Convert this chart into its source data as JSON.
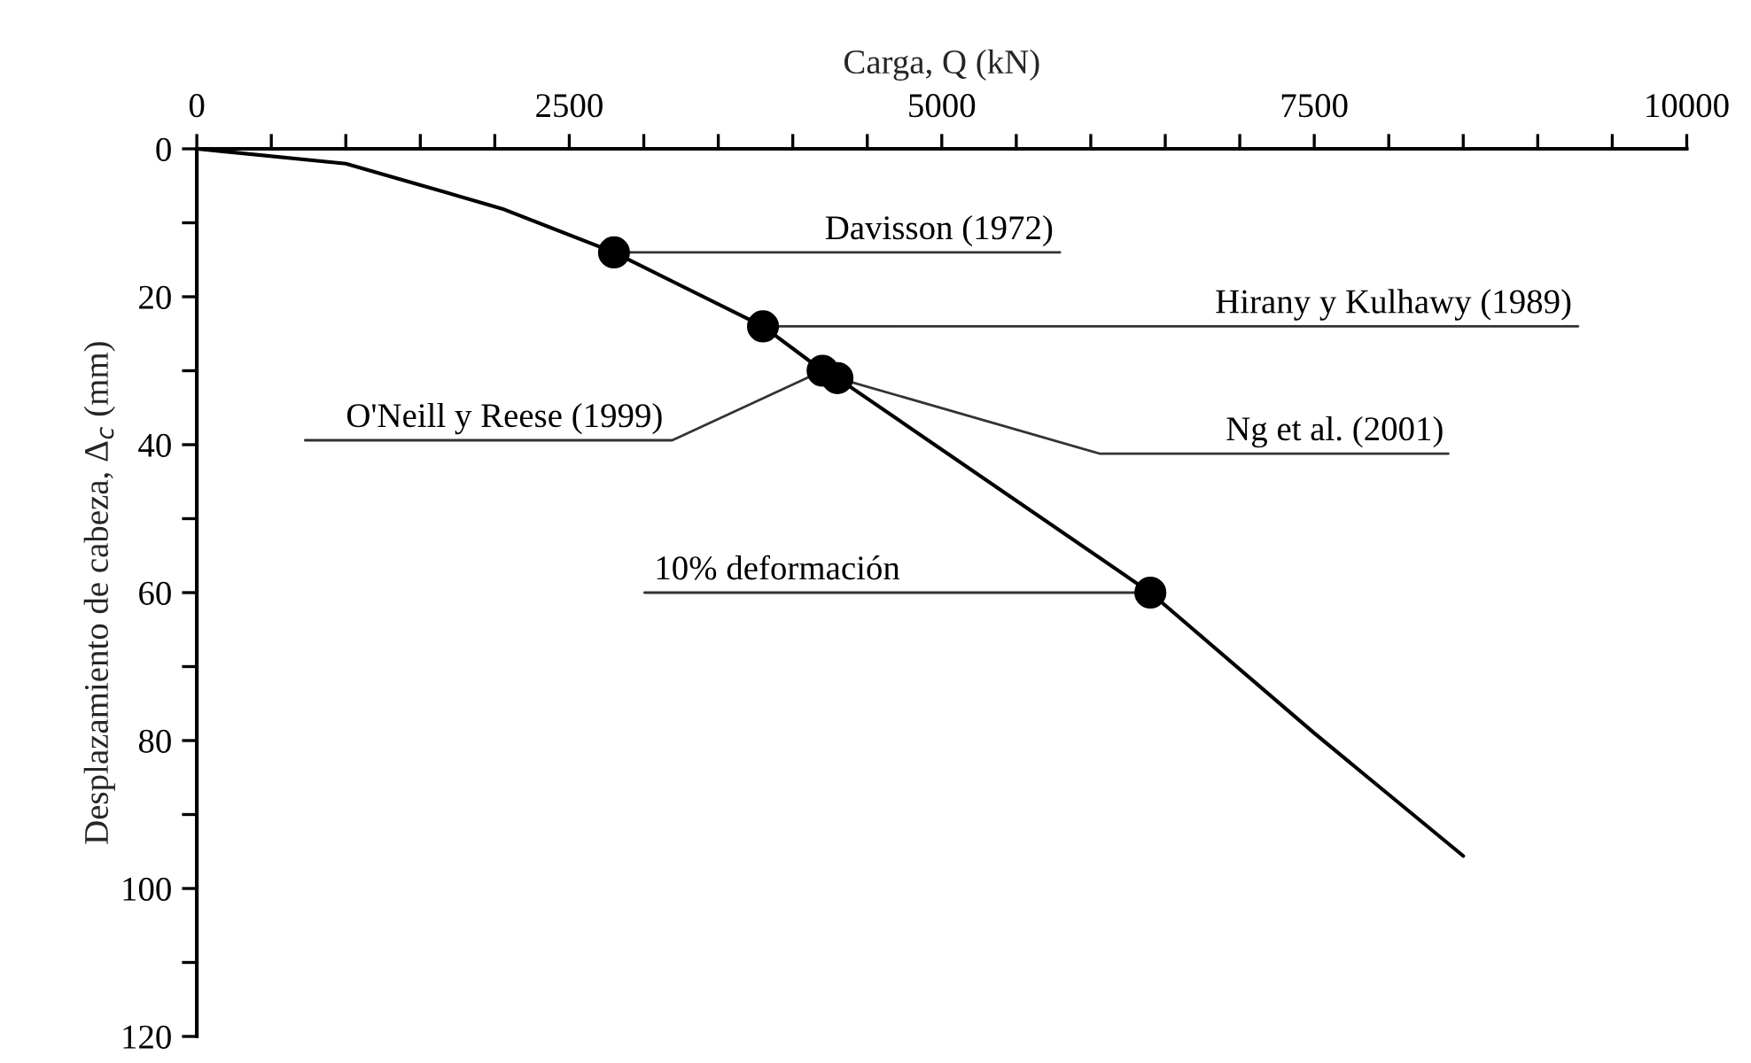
{
  "chart_data": {
    "type": "line",
    "xlabel": "Carga, Q (kN)",
    "ylabel": "Desplazamiento de cabeza, Δ$_{c}$ (mm)",
    "series": [
      {
        "type": "line",
        "color": "#000000",
        "x": [
          0,
          1000,
          1450,
          2050,
          2800,
          3800,
          4200,
          4300,
          6400,
          7500,
          8500
        ],
        "values": [
          0,
          2,
          4.6,
          8.1,
          14,
          24,
          30,
          31,
          60,
          79,
          95.6
        ],
        "marker": "none",
        "line_style": "solid"
      },
      {
        "type": "scatter",
        "color": "#000000",
        "x": [
          2800,
          3800,
          4200,
          4300,
          6400
        ],
        "values": [
          14,
          24,
          30,
          31,
          60
        ],
        "marker": "circle"
      }
    ],
    "annotations": [
      {
        "text": "Davisson (1972)",
        "x": 2800,
        "y": 14
      },
      {
        "text": "Hirany y Kulhawy (1989)",
        "x": 3800,
        "y": 24
      },
      {
        "text": "O'Neill y Reese (1999)",
        "x": 4200,
        "y": 30
      },
      {
        "text": "Ng et al. (2001)",
        "x": 4300,
        "y": 31
      },
      {
        "text": "10% deformación",
        "x": 6400,
        "y": 60
      }
    ],
    "xlim": [
      0,
      10000
    ],
    "xticks": [
      0,
      {
        "value": 500,
        "label": null
      },
      {
        "value": 1000,
        "label": null
      },
      {
        "value": 1500,
        "label": null
      },
      {
        "value": 2000,
        "label": null
      },
      2500,
      {
        "value": 3000,
        "label": null
      },
      {
        "value": 3500,
        "label": null
      },
      {
        "value": 4000,
        "label": null
      },
      {
        "value": 4500,
        "label": null
      },
      5000,
      {
        "value": 5500,
        "label": null
      },
      {
        "value": 6000,
        "label": null
      },
      {
        "value": 6500,
        "label": null
      },
      {
        "value": 7000,
        "label": null
      },
      7500,
      {
        "value": 8000,
        "label": null
      },
      {
        "value": 8500,
        "label": null
      },
      {
        "value": 9000,
        "label": null
      },
      {
        "value": 9500,
        "label": null
      },
      10000
    ],
    "ylim": [
      120,
      0
    ],
    "yticks": [
      0,
      {
        "value": 10,
        "label": null
      },
      20,
      {
        "value": 30,
        "label": null
      },
      40,
      {
        "value": 50,
        "label": null
      },
      60,
      {
        "value": 70,
        "label": null
      },
      80,
      {
        "value": 90,
        "label": null
      },
      100,
      {
        "value": 110,
        "label": null
      },
      120
    ],
    "grid": false,
    "legend": false
  }
}
